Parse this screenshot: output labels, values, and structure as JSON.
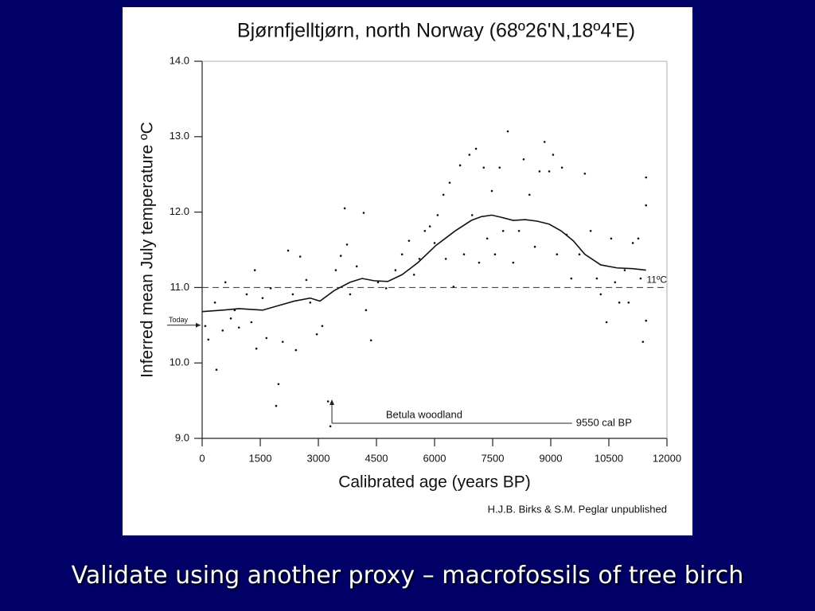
{
  "chart_data": {
    "type": "scatter",
    "title": "Bjørnfjelltjørn, north Norway (68º26'N,18º4'E)",
    "x_label": "Calibrated age (years BP)",
    "y_label": "Inferred mean July temperature ºC",
    "source": "H.J.B. Birks & S.M. Peglar unpublished",
    "xlim": [
      0,
      12000
    ],
    "xticks": [
      0,
      1500,
      3000,
      4500,
      6000,
      7500,
      9000,
      10500,
      12000
    ],
    "ylim": [
      9,
      14
    ],
    "yticks": [
      {
        "value": 9,
        "label": "9.0"
      },
      {
        "value": 10,
        "label": "10.0"
      },
      {
        "value": 11,
        "label": "11.0"
      },
      {
        "value": 12,
        "label": "12.0"
      },
      {
        "value": 13,
        "label": "13.0"
      },
      {
        "value": 14,
        "label": "14.0"
      }
    ],
    "color": "#111111",
    "points": {
      "x": [
        80,
        160,
        370,
        330,
        530,
        600,
        740,
        840,
        950,
        1150,
        1270,
        1360,
        1400,
        1560,
        1660,
        1770,
        1910,
        1970,
        2080,
        2220,
        2340,
        2420,
        2530,
        2690,
        2790,
        2960,
        3100,
        3250,
        3310,
        3450,
        3580,
        3680,
        3740,
        3820,
        3990,
        4170,
        4230,
        4360,
        4540,
        4750,
        4990,
        5160,
        5340,
        5470,
        5610,
        5750,
        5880,
        6000,
        6080,
        6230,
        6290,
        6390,
        6490,
        6660,
        6760,
        6900,
        6970,
        7070,
        7150,
        7270,
        7360,
        7480,
        7560,
        7680,
        7770,
        7890,
        8030,
        8180,
        8300,
        8450,
        8590,
        8710,
        8840,
        8960,
        9060,
        9160,
        9290,
        9410,
        9530,
        9740,
        9880,
        10030,
        10190,
        10290,
        10440,
        10560,
        10660,
        10770,
        10910,
        11010,
        11120,
        11260,
        11320,
        11380,
        11460,
        11460,
        11460
      ],
      "y": [
        10.49,
        10.31,
        9.91,
        10.8,
        10.43,
        11.07,
        10.59,
        10.7,
        10.47,
        10.91,
        10.54,
        11.23,
        10.19,
        10.86,
        10.33,
        10.99,
        9.43,
        9.72,
        10.28,
        11.49,
        10.91,
        10.17,
        11.41,
        11.1,
        10.8,
        10.38,
        10.49,
        9.49,
        9.16,
        11.23,
        11.42,
        12.05,
        11.57,
        10.91,
        11.28,
        11.99,
        10.7,
        10.3,
        11.07,
        10.99,
        11.23,
        11.44,
        11.62,
        11.17,
        11.38,
        11.75,
        11.81,
        11.59,
        11.96,
        12.23,
        11.38,
        12.39,
        11.01,
        12.62,
        11.44,
        12.76,
        11.96,
        12.84,
        11.33,
        12.59,
        11.65,
        12.28,
        11.44,
        12.59,
        11.75,
        13.07,
        11.33,
        11.75,
        12.7,
        12.23,
        11.54,
        12.54,
        12.93,
        12.54,
        12.76,
        11.44,
        12.59,
        11.7,
        11.12,
        11.44,
        12.51,
        11.75,
        11.12,
        10.91,
        10.54,
        11.65,
        11.07,
        10.8,
        11.23,
        10.8,
        11.59,
        11.65,
        11.12,
        10.28,
        12.09,
        12.46,
        10.56
      ]
    },
    "curve": {
      "x": [
        0,
        530,
        950,
        1560,
        1970,
        2380,
        2790,
        3040,
        3410,
        3820,
        4130,
        4440,
        4790,
        5160,
        5570,
        6040,
        6530,
        6950,
        7210,
        7480,
        7730,
        8030,
        8340,
        8650,
        8960,
        9270,
        9580,
        9880,
        10290,
        10710,
        11120,
        11460
      ],
      "y": [
        10.68,
        10.7,
        10.72,
        10.7,
        10.76,
        10.82,
        10.86,
        10.82,
        10.96,
        11.07,
        11.12,
        11.09,
        11.08,
        11.17,
        11.33,
        11.56,
        11.75,
        11.89,
        11.94,
        11.96,
        11.93,
        11.89,
        11.9,
        11.88,
        11.84,
        11.75,
        11.62,
        11.44,
        11.3,
        11.26,
        11.25,
        11.23
      ]
    },
    "reference_line": {
      "value": 11,
      "label": "11ºC"
    },
    "today": {
      "value": 10.5,
      "label": "Today"
    },
    "betula": {
      "label": "Betula woodland",
      "start": 3350,
      "end": 9550,
      "end_label": "9550 cal BP",
      "y": 9.2
    }
  },
  "caption": "Validate using another proxy – macrofossils of tree birch"
}
